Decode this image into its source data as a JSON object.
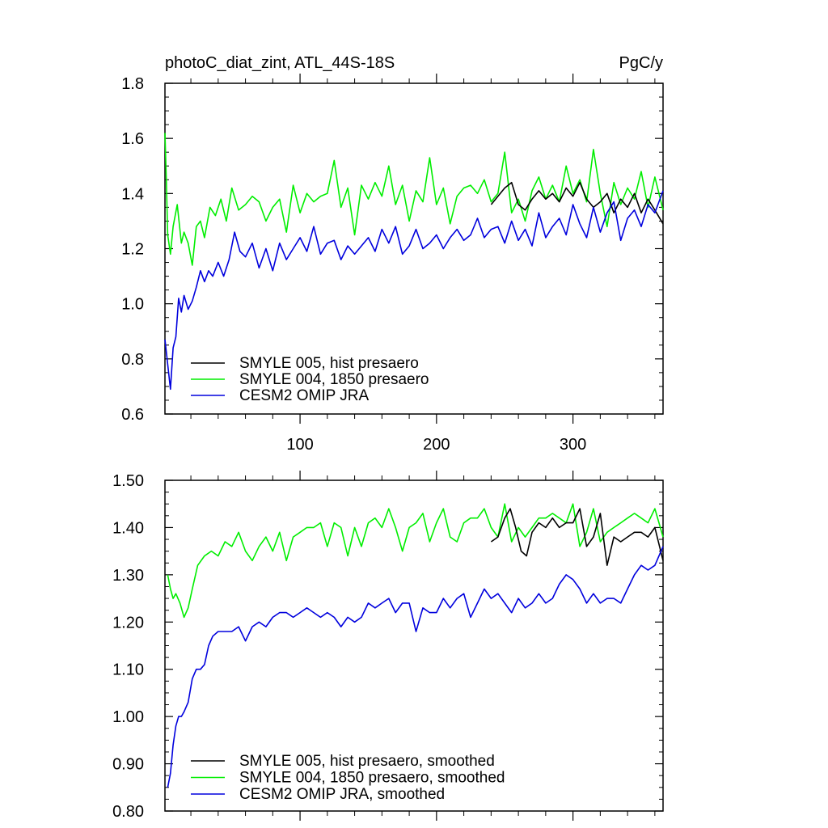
{
  "chart_data": [
    {
      "type": "line",
      "title_left": "photoC_diat_zint, ATL_44S-18S",
      "title_right": "PgC/y",
      "xlim": [
        1,
        366
      ],
      "ylim": [
        0.6,
        1.8
      ],
      "x_ticks": [
        100,
        200,
        300
      ],
      "x_tick_labels": [
        "100",
        "200",
        "300"
      ],
      "y_ticks": [
        0.6,
        0.8,
        1.0,
        1.2,
        1.4,
        1.6,
        1.8
      ],
      "y_tick_labels": [
        "0.6",
        "0.8",
        "1.0",
        "1.2",
        "1.4",
        "1.6",
        "1.8"
      ],
      "legend_position": "bottom-left",
      "grid": false,
      "series": [
        {
          "name": "SMYLE 005, hist presaero",
          "color": "#000000",
          "x": [
            240,
            245,
            250,
            255,
            260,
            265,
            270,
            275,
            280,
            285,
            290,
            295,
            300,
            305,
            310,
            315,
            320,
            325,
            330,
            335,
            340,
            345,
            350,
            355,
            360,
            366
          ],
          "values": [
            1.36,
            1.39,
            1.42,
            1.44,
            1.36,
            1.34,
            1.38,
            1.41,
            1.38,
            1.4,
            1.37,
            1.42,
            1.39,
            1.44,
            1.38,
            1.35,
            1.37,
            1.4,
            1.33,
            1.38,
            1.35,
            1.4,
            1.33,
            1.38,
            1.34,
            1.29
          ]
        },
        {
          "name": "SMYLE 004, 1850 presaero",
          "color": "#00ee00",
          "x": [
            1,
            2,
            3,
            5,
            7,
            10,
            13,
            15,
            18,
            21,
            24,
            27,
            30,
            34,
            38,
            42,
            46,
            50,
            55,
            60,
            65,
            70,
            75,
            80,
            85,
            90,
            95,
            100,
            105,
            110,
            115,
            120,
            125,
            130,
            135,
            140,
            145,
            150,
            155,
            160,
            165,
            170,
            175,
            180,
            185,
            190,
            195,
            200,
            205,
            210,
            215,
            220,
            225,
            230,
            235,
            240,
            245,
            250,
            255,
            260,
            265,
            270,
            275,
            280,
            285,
            290,
            295,
            300,
            305,
            310,
            315,
            320,
            325,
            330,
            335,
            340,
            345,
            350,
            355,
            360,
            366
          ],
          "values": [
            1.62,
            1.45,
            1.25,
            1.18,
            1.28,
            1.36,
            1.22,
            1.26,
            1.22,
            1.14,
            1.28,
            1.3,
            1.24,
            1.35,
            1.32,
            1.38,
            1.3,
            1.42,
            1.34,
            1.36,
            1.39,
            1.37,
            1.3,
            1.35,
            1.38,
            1.26,
            1.43,
            1.33,
            1.4,
            1.37,
            1.39,
            1.4,
            1.52,
            1.35,
            1.42,
            1.25,
            1.43,
            1.38,
            1.44,
            1.39,
            1.5,
            1.36,
            1.43,
            1.3,
            1.41,
            1.37,
            1.53,
            1.36,
            1.42,
            1.29,
            1.39,
            1.42,
            1.43,
            1.4,
            1.45,
            1.37,
            1.4,
            1.55,
            1.33,
            1.38,
            1.3,
            1.41,
            1.46,
            1.38,
            1.43,
            1.37,
            1.5,
            1.4,
            1.45,
            1.37,
            1.56,
            1.4,
            1.28,
            1.44,
            1.36,
            1.42,
            1.38,
            1.48,
            1.35,
            1.46,
            1.34
          ]
        },
        {
          "name": "CESM2 OMIP JRA",
          "color": "#0000dd",
          "x": [
            1,
            3,
            5,
            7,
            9,
            11,
            13,
            15,
            18,
            21,
            24,
            27,
            30,
            33,
            36,
            40,
            44,
            48,
            52,
            56,
            60,
            65,
            70,
            75,
            80,
            85,
            90,
            95,
            100,
            105,
            110,
            115,
            120,
            125,
            130,
            135,
            140,
            145,
            150,
            155,
            160,
            165,
            170,
            175,
            180,
            185,
            190,
            195,
            200,
            205,
            210,
            215,
            220,
            225,
            230,
            235,
            240,
            245,
            250,
            255,
            260,
            265,
            270,
            275,
            280,
            285,
            290,
            295,
            300,
            305,
            310,
            315,
            320,
            325,
            330,
            335,
            340,
            345,
            350,
            355,
            360,
            366
          ],
          "values": [
            0.87,
            0.78,
            0.69,
            0.84,
            0.88,
            1.02,
            0.97,
            1.03,
            0.98,
            1.01,
            1.06,
            1.12,
            1.08,
            1.12,
            1.1,
            1.15,
            1.1,
            1.16,
            1.26,
            1.19,
            1.17,
            1.22,
            1.13,
            1.2,
            1.12,
            1.22,
            1.16,
            1.2,
            1.24,
            1.19,
            1.28,
            1.18,
            1.22,
            1.23,
            1.16,
            1.21,
            1.18,
            1.21,
            1.24,
            1.19,
            1.27,
            1.22,
            1.28,
            1.18,
            1.21,
            1.27,
            1.2,
            1.22,
            1.25,
            1.2,
            1.24,
            1.27,
            1.23,
            1.25,
            1.31,
            1.24,
            1.27,
            1.28,
            1.22,
            1.3,
            1.23,
            1.27,
            1.21,
            1.33,
            1.24,
            1.28,
            1.31,
            1.25,
            1.36,
            1.29,
            1.24,
            1.35,
            1.26,
            1.33,
            1.37,
            1.23,
            1.31,
            1.34,
            1.28,
            1.36,
            1.33,
            1.41
          ]
        }
      ]
    },
    {
      "type": "line",
      "xlim": [
        1,
        366
      ],
      "ylim": [
        0.8,
        1.5
      ],
      "x_ticks": [
        100,
        200,
        300
      ],
      "y_ticks": [
        0.8,
        0.9,
        1.0,
        1.1,
        1.2,
        1.3,
        1.4,
        1.5
      ],
      "y_tick_labels": [
        "0.80",
        "0.90",
        "1.00",
        "1.10",
        "1.20",
        "1.30",
        "1.40",
        "1.50"
      ],
      "legend_position": "bottom-left",
      "grid": false,
      "series": [
        {
          "name": "SMYLE 005, hist presaero, smoothed",
          "color": "#000000",
          "x": [
            240,
            245,
            250,
            254,
            258,
            262,
            266,
            270,
            275,
            280,
            285,
            290,
            295,
            300,
            305,
            310,
            315,
            320,
            325,
            330,
            335,
            340,
            345,
            350,
            355,
            360,
            366
          ],
          "values": [
            1.37,
            1.38,
            1.42,
            1.44,
            1.4,
            1.35,
            1.34,
            1.39,
            1.41,
            1.4,
            1.42,
            1.4,
            1.41,
            1.41,
            1.44,
            1.36,
            1.38,
            1.43,
            1.32,
            1.38,
            1.37,
            1.38,
            1.39,
            1.39,
            1.38,
            1.4,
            1.33
          ]
        },
        {
          "name": "SMYLE 004, 1850 presaero, smoothed",
          "color": "#00ee00",
          "x": [
            3,
            5,
            7,
            9,
            12,
            15,
            18,
            21,
            25,
            30,
            35,
            40,
            45,
            50,
            55,
            60,
            65,
            70,
            75,
            80,
            85,
            90,
            95,
            100,
            105,
            110,
            115,
            120,
            125,
            130,
            135,
            140,
            145,
            150,
            155,
            160,
            165,
            170,
            175,
            180,
            185,
            190,
            195,
            200,
            205,
            210,
            215,
            220,
            225,
            230,
            235,
            240,
            245,
            250,
            255,
            260,
            265,
            270,
            275,
            280,
            285,
            290,
            295,
            300,
            305,
            310,
            315,
            320,
            325,
            330,
            335,
            340,
            345,
            350,
            355,
            360,
            366
          ],
          "values": [
            1.3,
            1.27,
            1.25,
            1.26,
            1.24,
            1.21,
            1.23,
            1.27,
            1.32,
            1.34,
            1.35,
            1.34,
            1.37,
            1.36,
            1.39,
            1.35,
            1.33,
            1.36,
            1.38,
            1.35,
            1.39,
            1.33,
            1.38,
            1.39,
            1.4,
            1.4,
            1.41,
            1.36,
            1.41,
            1.4,
            1.34,
            1.4,
            1.36,
            1.41,
            1.42,
            1.4,
            1.44,
            1.4,
            1.35,
            1.4,
            1.41,
            1.43,
            1.37,
            1.41,
            1.44,
            1.38,
            1.37,
            1.41,
            1.42,
            1.42,
            1.44,
            1.4,
            1.38,
            1.45,
            1.37,
            1.4,
            1.38,
            1.4,
            1.42,
            1.42,
            1.43,
            1.42,
            1.41,
            1.45,
            1.36,
            1.39,
            1.44,
            1.37,
            1.39,
            1.4,
            1.41,
            1.42,
            1.43,
            1.42,
            1.41,
            1.44,
            1.38
          ]
        },
        {
          "name": "CESM2 OMIP JRA, smoothed",
          "color": "#0000dd",
          "x": [
            3,
            5,
            7,
            9,
            11,
            13,
            15,
            18,
            21,
            24,
            27,
            30,
            33,
            36,
            40,
            45,
            50,
            55,
            60,
            65,
            70,
            75,
            80,
            85,
            90,
            95,
            100,
            105,
            110,
            115,
            120,
            125,
            130,
            135,
            140,
            145,
            150,
            155,
            160,
            165,
            170,
            175,
            180,
            185,
            190,
            195,
            200,
            205,
            210,
            215,
            220,
            225,
            230,
            235,
            240,
            245,
            250,
            255,
            260,
            265,
            270,
            275,
            280,
            285,
            290,
            295,
            300,
            305,
            310,
            315,
            320,
            325,
            330,
            335,
            340,
            345,
            350,
            355,
            360,
            366
          ],
          "values": [
            0.85,
            0.88,
            0.94,
            0.98,
            1.0,
            1.0,
            1.01,
            1.03,
            1.08,
            1.1,
            1.1,
            1.11,
            1.15,
            1.17,
            1.18,
            1.18,
            1.18,
            1.19,
            1.16,
            1.19,
            1.2,
            1.19,
            1.21,
            1.22,
            1.22,
            1.21,
            1.22,
            1.23,
            1.22,
            1.21,
            1.22,
            1.21,
            1.19,
            1.21,
            1.2,
            1.21,
            1.24,
            1.23,
            1.24,
            1.25,
            1.22,
            1.24,
            1.24,
            1.18,
            1.23,
            1.22,
            1.22,
            1.25,
            1.23,
            1.25,
            1.26,
            1.21,
            1.24,
            1.27,
            1.25,
            1.26,
            1.24,
            1.22,
            1.25,
            1.23,
            1.24,
            1.26,
            1.24,
            1.25,
            1.28,
            1.3,
            1.29,
            1.27,
            1.24,
            1.26,
            1.24,
            1.25,
            1.25,
            1.24,
            1.27,
            1.3,
            1.32,
            1.31,
            1.32,
            1.36
          ]
        }
      ]
    }
  ]
}
